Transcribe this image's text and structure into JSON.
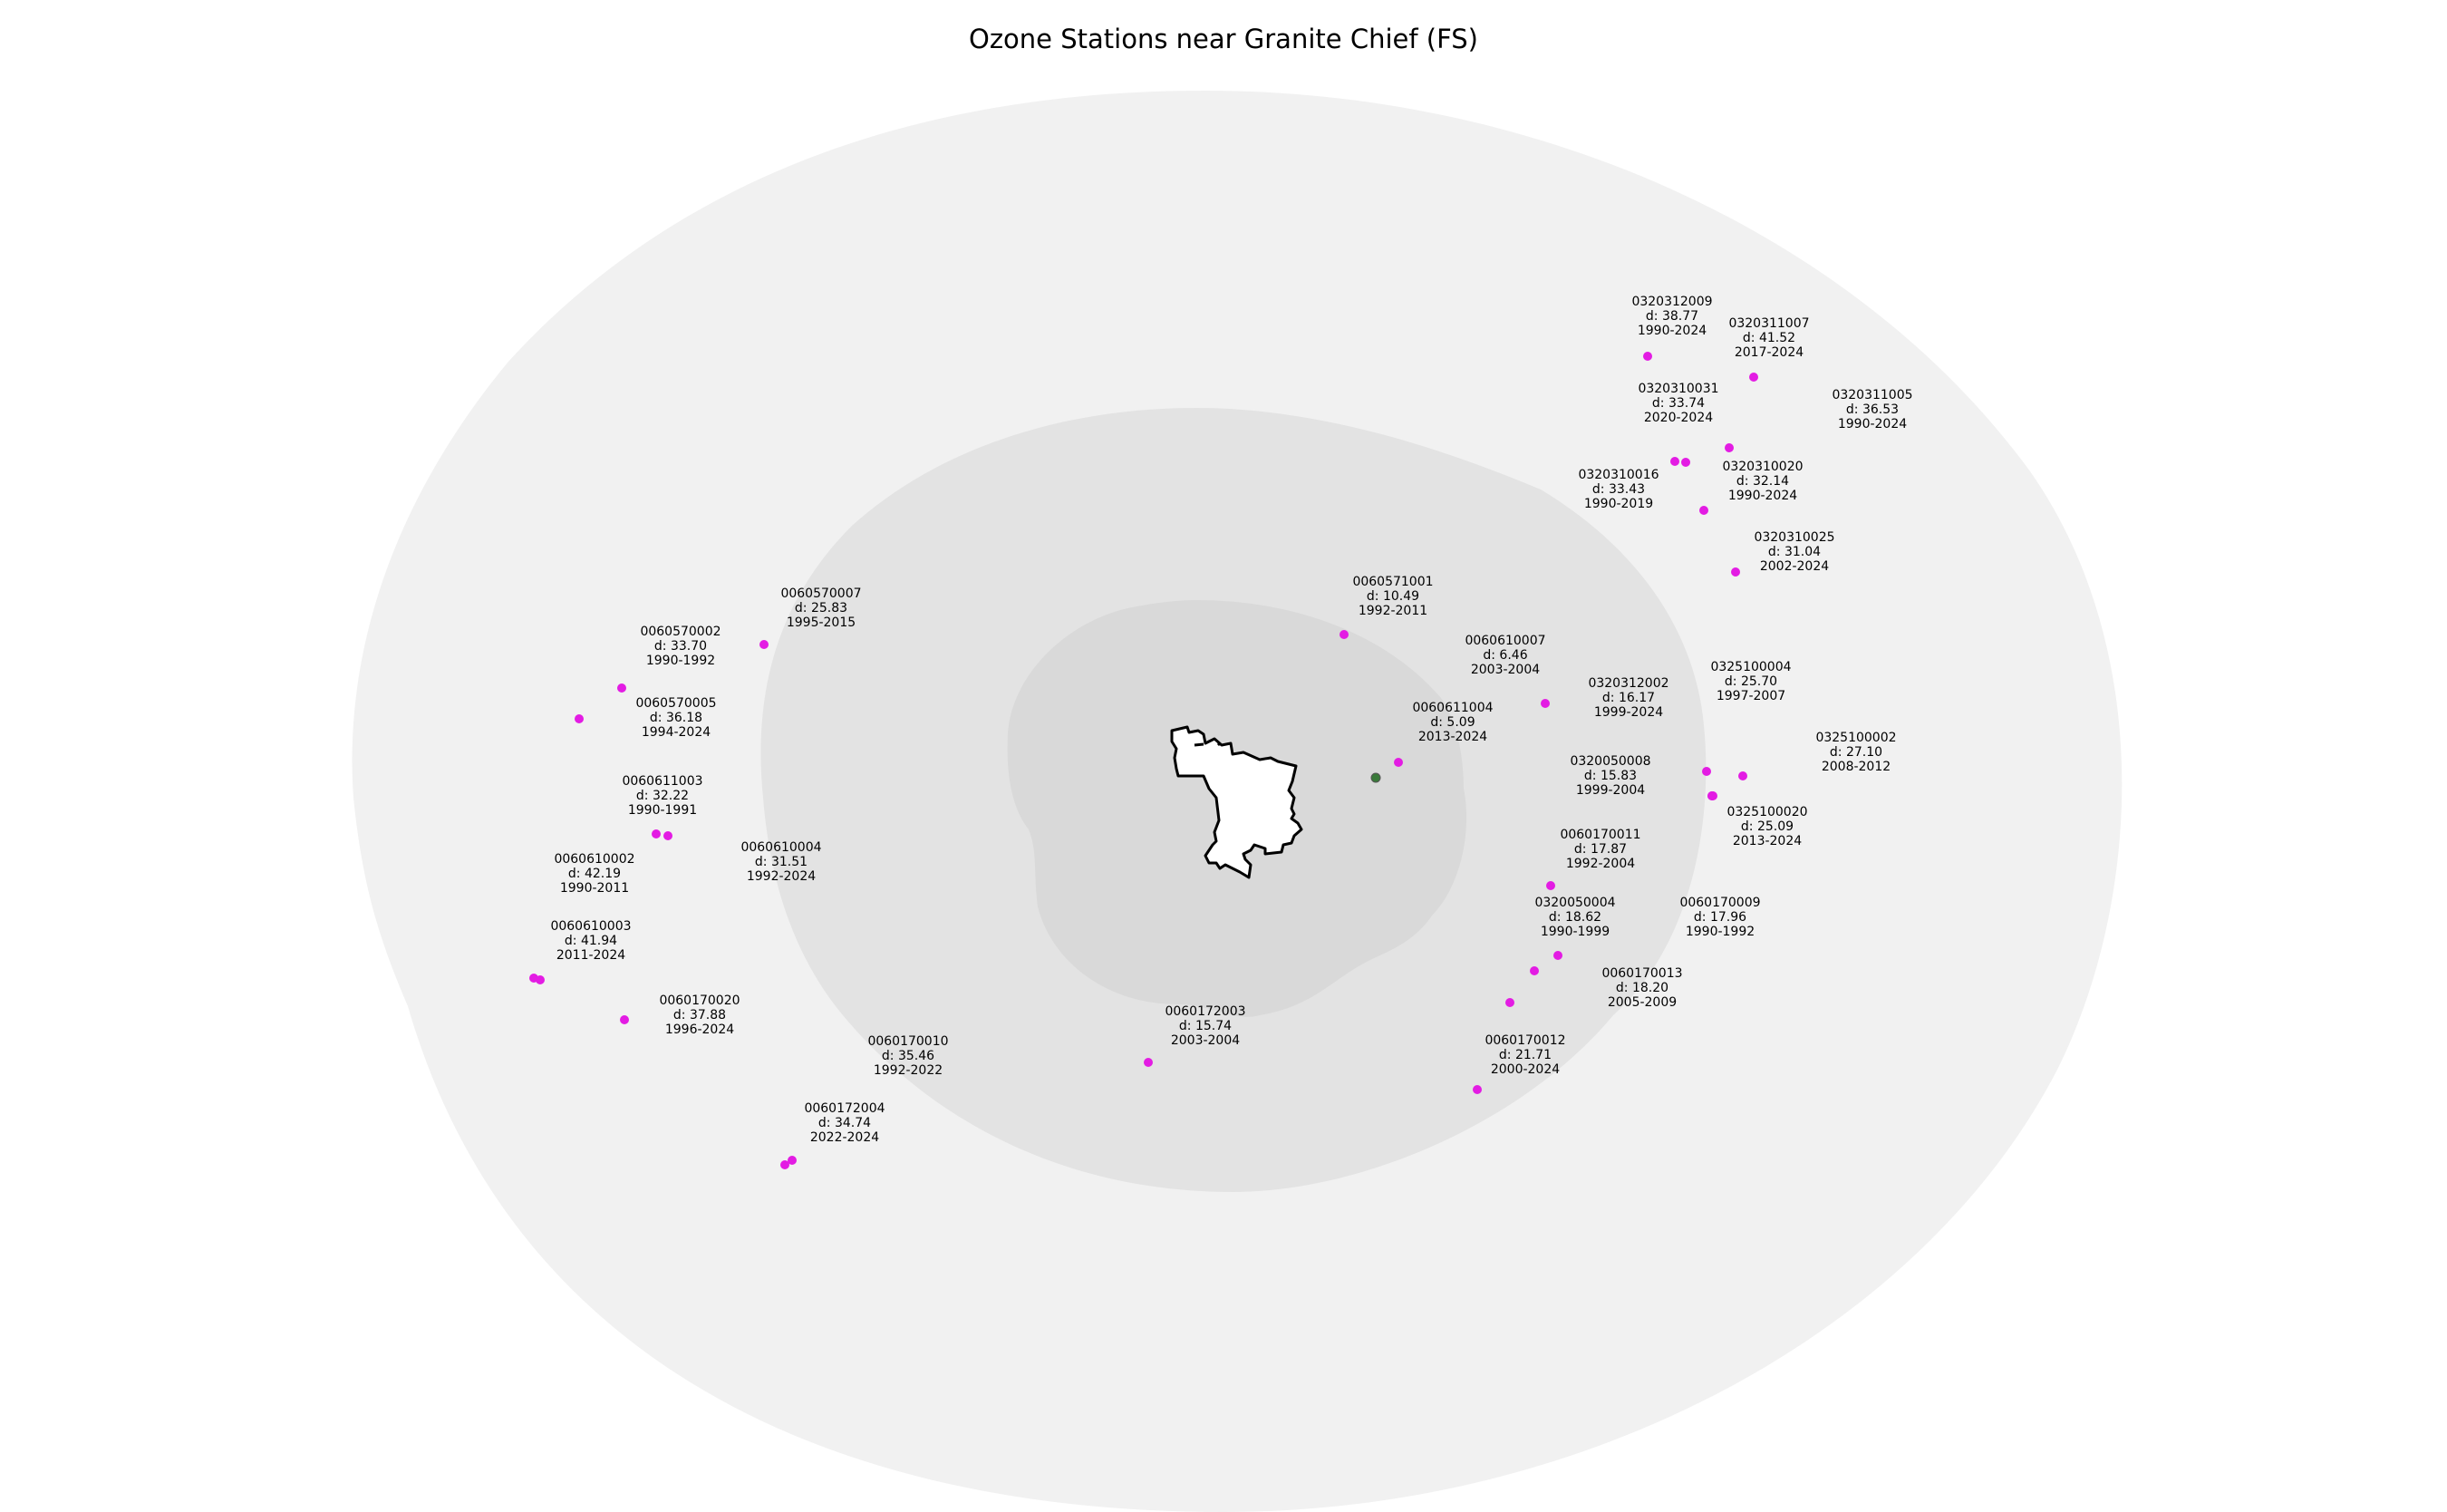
{
  "title": "Ozone Stations near Granite Chief (FS)",
  "colors": {
    "buffer_outer": "#f1f1f1",
    "buffer_middle": "#e3e3e3",
    "buffer_inner": "#d9d9d9",
    "area_fill": "#ffffff",
    "area_outline": "#000000",
    "station": "#e31ce3",
    "center_point": "#3a7a3a"
  },
  "stations": [
    {
      "id": "0320312009",
      "d": "d: 38.77",
      "years": "1990-2024"
    },
    {
      "id": "0320311007",
      "d": "d: 41.52",
      "years": "2017-2024"
    },
    {
      "id": "0320310031",
      "d": "d: 33.74",
      "years": "2020-2024"
    },
    {
      "id": "0320311005",
      "d": "d: 36.53",
      "years": "1990-2024"
    },
    {
      "id": "0320310020",
      "d": "d: 32.14",
      "years": "1990-2024"
    },
    {
      "id": "0320310016",
      "d": "d: 33.43",
      "years": "1990-2019"
    },
    {
      "id": "0320310025",
      "d": "d: 31.04",
      "years": "2002-2024"
    },
    {
      "id": "0060571001",
      "d": "d: 10.49",
      "years": "1992-2011"
    },
    {
      "id": "0060610007",
      "d": "d: 6.46",
      "years": "2003-2004"
    },
    {
      "id": "0320312002",
      "d": "d: 16.17",
      "years": "1999-2024"
    },
    {
      "id": "0325100004",
      "d": "d: 25.70",
      "years": "1997-2007"
    },
    {
      "id": "0060611004",
      "d": "d: 5.09",
      "years": "2013-2024"
    },
    {
      "id": "0325100002",
      "d": "d: 27.10",
      "years": "2008-2012"
    },
    {
      "id": "0320050008",
      "d": "d: 15.83",
      "years": "1999-2004"
    },
    {
      "id": "0325100020",
      "d": "d: 25.09",
      "years": "2013-2024"
    },
    {
      "id": "0060170011",
      "d": "d: 17.87",
      "years": "1992-2004"
    },
    {
      "id": "0320050004",
      "d": "d: 18.62",
      "years": "1990-1999"
    },
    {
      "id": "0060170009",
      "d": "d: 17.96",
      "years": "1990-1992"
    },
    {
      "id": "0060170013",
      "d": "d: 18.20",
      "years": "2005-2009"
    },
    {
      "id": "0060170012",
      "d": "d: 21.71",
      "years": "2000-2024"
    },
    {
      "id": "0060172003",
      "d": "d: 15.74",
      "years": "2003-2004"
    },
    {
      "id": "0060170010",
      "d": "d: 35.46",
      "years": "1992-2022"
    },
    {
      "id": "0060172004",
      "d": "d: 34.74",
      "years": "2022-2024"
    },
    {
      "id": "0060570007",
      "d": "d: 25.83",
      "years": "1995-2015"
    },
    {
      "id": "0060570002",
      "d": "d: 33.70",
      "years": "1990-1992"
    },
    {
      "id": "0060570005",
      "d": "d: 36.18",
      "years": "1994-2024"
    },
    {
      "id": "0060611003",
      "d": "d: 32.22",
      "years": "1990-1991"
    },
    {
      "id": "0060610004",
      "d": "d: 31.51",
      "years": "1992-2024"
    },
    {
      "id": "0060610002",
      "d": "d: 42.19",
      "years": "1990-2011"
    },
    {
      "id": "0060610003",
      "d": "d: 41.94",
      "years": "2011-2024"
    },
    {
      "id": "0060170020",
      "d": "d: 37.88",
      "years": "1996-2024"
    }
  ]
}
